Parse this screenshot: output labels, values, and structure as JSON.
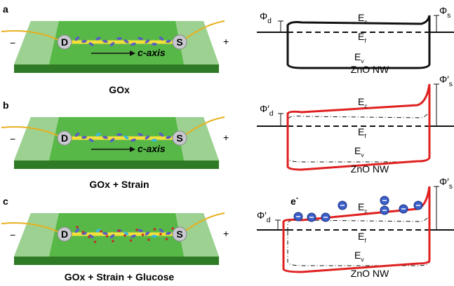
{
  "panels": [
    {
      "label": "a",
      "caption": "GOx",
      "device": {
        "minus": "−",
        "plus": "+",
        "drain": "D",
        "source": "S",
        "axis": "c-axis"
      },
      "band": {
        "phi_d": {
          "symbol": "Φ",
          "sub": "d"
        },
        "phi_s": {
          "symbol": "Φ",
          "sub": "s"
        },
        "ec": {
          "symbol": "E",
          "sub": "c"
        },
        "ef": {
          "symbol": "E",
          "sub": "f"
        },
        "ev": {
          "symbol": "E",
          "sub": "v"
        },
        "material": "ZnO NW"
      }
    },
    {
      "label": "b",
      "caption": "GOx + Strain",
      "device": {
        "minus": "−",
        "plus": "+",
        "drain": "D",
        "source": "S",
        "axis": "c-axis"
      },
      "band": {
        "phi_d": {
          "symbol": "Φ′",
          "sub": "d"
        },
        "phi_s": {
          "symbol": "Φ′",
          "sub": "s"
        },
        "ec": {
          "symbol": "E",
          "sub": "c"
        },
        "ef": {
          "symbol": "E",
          "sub": "f"
        },
        "ev": {
          "symbol": "E",
          "sub": "v"
        },
        "material": "ZnO NW"
      }
    },
    {
      "label": "c",
      "caption": "GOx + Strain + Glucose",
      "device": {
        "minus": "−",
        "plus": "+",
        "drain": "D",
        "source": "S"
      },
      "band": {
        "phi_d": {
          "symbol": "Φ′",
          "sub": "d"
        },
        "phi_s": {
          "symbol": "Φ′",
          "sub": "s"
        },
        "ec": {
          "symbol": "E",
          "sub": "c"
        },
        "ef": {
          "symbol": "E",
          "sub": "f"
        },
        "ev": {
          "symbol": "E",
          "sub": "v"
        },
        "material": "ZnO NW",
        "electron": {
          "symbol": "e",
          "sup": "-"
        }
      }
    }
  ]
}
